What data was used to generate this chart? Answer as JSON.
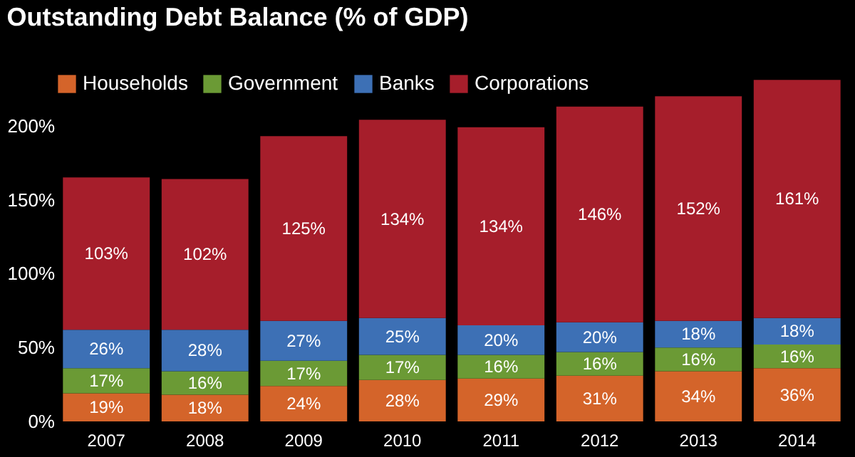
{
  "chart_data": {
    "type": "bar",
    "stacked": true,
    "title": "Outstanding Debt Balance (% of GDP)",
    "categories": [
      "2007",
      "2008",
      "2009",
      "2010",
      "2011",
      "2012",
      "2013",
      "2014"
    ],
    "series": [
      {
        "name": "Households",
        "color": "#d4642a",
        "values": [
          19,
          18,
          24,
          28,
          29,
          31,
          34,
          36
        ],
        "value_labels": [
          "19%",
          "18%",
          "24%",
          "28%",
          "29%",
          "31%",
          "34%",
          "36%"
        ]
      },
      {
        "name": "Government",
        "color": "#6b9a35",
        "values": [
          17,
          16,
          17,
          17,
          16,
          16,
          16,
          16
        ],
        "value_labels": [
          "17%",
          "16%",
          "17%",
          "17%",
          "16%",
          "16%",
          "16%",
          "16%"
        ]
      },
      {
        "name": "Banks",
        "color": "#3d70b5",
        "values": [
          26,
          28,
          27,
          25,
          20,
          20,
          18,
          18
        ],
        "value_labels": [
          "26%",
          "28%",
          "27%",
          "25%",
          "20%",
          "20%",
          "18%",
          "18%"
        ]
      },
      {
        "name": "Corporations",
        "color": "#a61e2b",
        "values": [
          103,
          102,
          125,
          134,
          134,
          146,
          152,
          161
        ],
        "value_labels": [
          "103%",
          "102%",
          "125%",
          "134%",
          "134%",
          "146%",
          "152%",
          "161%"
        ]
      }
    ],
    "ylim": [
      0,
      235
    ],
    "yticks": [
      {
        "value": 0,
        "label": "0%"
      },
      {
        "value": 50,
        "label": "50%"
      },
      {
        "value": 100,
        "label": "100%"
      },
      {
        "value": 150,
        "label": "150%"
      },
      {
        "value": 200,
        "label": "200%"
      }
    ],
    "legend": "top left",
    "grid": false
  }
}
